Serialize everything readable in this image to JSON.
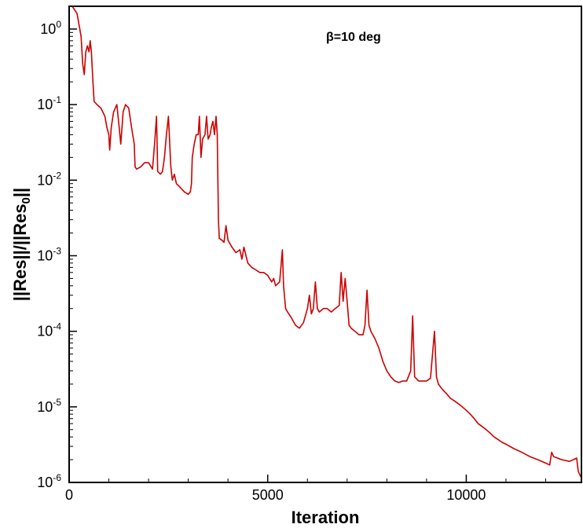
{
  "chart_data": {
    "type": "line",
    "title": "",
    "annotation": "β=10 deg",
    "xlabel": "Iteration",
    "ylabel": "||Res||/||Res0||",
    "ylabel_main": "||Res||/||Res",
    "ylabel_sub": "0",
    "ylabel_end": "||",
    "xlim": [
      0,
      12900
    ],
    "ylim": [
      1e-06,
      2
    ],
    "yscale": "log",
    "grid": false,
    "x_ticks": [
      {
        "value": 0,
        "label": "0"
      },
      {
        "value": 5000,
        "label": "5000"
      },
      {
        "value": 10000,
        "label": "10000"
      }
    ],
    "y_ticks": [
      {
        "value": 1,
        "base": "10",
        "exp": "0"
      },
      {
        "value": 0.1,
        "base": "10",
        "exp": "-1"
      },
      {
        "value": 0.01,
        "base": "10",
        "exp": "-2"
      },
      {
        "value": 0.001,
        "base": "10",
        "exp": "-3"
      },
      {
        "value": 0.0001,
        "base": "10",
        "exp": "-4"
      },
      {
        "value": 1e-05,
        "base": "10",
        "exp": "-5"
      },
      {
        "value": 1e-06,
        "base": "10",
        "exp": "-6"
      }
    ],
    "series": [
      {
        "color": "#cc0000",
        "points": [
          [
            0,
            2.0
          ],
          [
            80,
            2.0
          ],
          [
            200,
            1.6
          ],
          [
            300,
            0.8
          ],
          [
            340,
            0.35
          ],
          [
            380,
            0.25
          ],
          [
            420,
            0.5
          ],
          [
            460,
            0.6
          ],
          [
            500,
            0.5
          ],
          [
            530,
            0.7
          ],
          [
            560,
            0.5
          ],
          [
            600,
            0.2
          ],
          [
            630,
            0.11
          ],
          [
            700,
            0.1
          ],
          [
            800,
            0.09
          ],
          [
            900,
            0.07
          ],
          [
            950,
            0.05
          ],
          [
            1000,
            0.04
          ],
          [
            1020,
            0.025
          ],
          [
            1060,
            0.05
          ],
          [
            1120,
            0.08
          ],
          [
            1200,
            0.1
          ],
          [
            1260,
            0.05
          ],
          [
            1300,
            0.03
          ],
          [
            1360,
            0.08
          ],
          [
            1420,
            0.1
          ],
          [
            1500,
            0.09
          ],
          [
            1550,
            0.06
          ],
          [
            1600,
            0.04
          ],
          [
            1640,
            0.03
          ],
          [
            1660,
            0.015
          ],
          [
            1700,
            0.014
          ],
          [
            1800,
            0.015
          ],
          [
            1900,
            0.017
          ],
          [
            2000,
            0.017
          ],
          [
            2100,
            0.014
          ],
          [
            2150,
            0.03
          ],
          [
            2200,
            0.07
          ],
          [
            2230,
            0.013
          ],
          [
            2300,
            0.012
          ],
          [
            2350,
            0.013
          ],
          [
            2400,
            0.02
          ],
          [
            2450,
            0.04
          ],
          [
            2500,
            0.07
          ],
          [
            2560,
            0.015
          ],
          [
            2600,
            0.01
          ],
          [
            2650,
            0.012
          ],
          [
            2700,
            0.009
          ],
          [
            2800,
            0.008
          ],
          [
            2900,
            0.007
          ],
          [
            3000,
            0.0065
          ],
          [
            3050,
            0.007
          ],
          [
            3080,
            0.009
          ],
          [
            3100,
            0.02
          ],
          [
            3150,
            0.03
          ],
          [
            3200,
            0.04
          ],
          [
            3250,
            0.04
          ],
          [
            3280,
            0.07
          ],
          [
            3320,
            0.02
          ],
          [
            3360,
            0.035
          ],
          [
            3420,
            0.04
          ],
          [
            3460,
            0.07
          ],
          [
            3500,
            0.035
          ],
          [
            3550,
            0.04
          ],
          [
            3580,
            0.05
          ],
          [
            3620,
            0.06
          ],
          [
            3660,
            0.04
          ],
          [
            3700,
            0.07
          ],
          [
            3730,
            0.04
          ],
          [
            3760,
            0.003
          ],
          [
            3780,
            0.0017
          ],
          [
            3850,
            0.0016
          ],
          [
            3900,
            0.0015
          ],
          [
            3950,
            0.0025
          ],
          [
            4000,
            0.0016
          ],
          [
            4100,
            0.0013
          ],
          [
            4200,
            0.0011
          ],
          [
            4300,
            0.0012
          ],
          [
            4350,
            0.0009
          ],
          [
            4400,
            0.0013
          ],
          [
            4500,
            0.0008
          ],
          [
            4600,
            0.0007
          ],
          [
            4700,
            0.00065
          ],
          [
            4800,
            0.0006
          ],
          [
            4900,
            0.0006
          ],
          [
            5000,
            0.00055
          ],
          [
            5100,
            0.00045
          ],
          [
            5150,
            0.0005
          ],
          [
            5200,
            0.0004
          ],
          [
            5300,
            0.00045
          ],
          [
            5370,
            0.0012
          ],
          [
            5400,
            0.0004
          ],
          [
            5450,
            0.0002
          ],
          [
            5500,
            0.00018
          ],
          [
            5600,
            0.00015
          ],
          [
            5700,
            0.00012
          ],
          [
            5800,
            0.00011
          ],
          [
            5900,
            0.00013
          ],
          [
            6000,
            0.0002
          ],
          [
            6050,
            0.0003
          ],
          [
            6100,
            0.00017
          ],
          [
            6150,
            0.0002
          ],
          [
            6200,
            0.00045
          ],
          [
            6250,
            0.0002
          ],
          [
            6300,
            0.00018
          ],
          [
            6400,
            0.0002
          ],
          [
            6500,
            0.0002
          ],
          [
            6600,
            0.00018
          ],
          [
            6700,
            0.0002
          ],
          [
            6800,
            0.00022
          ],
          [
            6850,
            0.0006
          ],
          [
            6900,
            0.00025
          ],
          [
            6950,
            0.0005
          ],
          [
            7000,
            0.00025
          ],
          [
            7050,
            0.00012
          ],
          [
            7100,
            0.00011
          ],
          [
            7200,
            0.0001
          ],
          [
            7300,
            9e-05
          ],
          [
            7400,
            9e-05
          ],
          [
            7450,
            0.00012
          ],
          [
            7500,
            0.00035
          ],
          [
            7550,
            0.00012
          ],
          [
            7600,
            0.0001
          ],
          [
            7700,
            8e-05
          ],
          [
            7800,
            6e-05
          ],
          [
            7900,
            4e-05
          ],
          [
            8000,
            3e-05
          ],
          [
            8100,
            2.5e-05
          ],
          [
            8200,
            2.2e-05
          ],
          [
            8300,
            2.1e-05
          ],
          [
            8400,
            2.2e-05
          ],
          [
            8500,
            2.2e-05
          ],
          [
            8600,
            3e-05
          ],
          [
            8650,
            0.00016
          ],
          [
            8700,
            2.5e-05
          ],
          [
            8800,
            2.2e-05
          ],
          [
            8900,
            2.2e-05
          ],
          [
            9000,
            2.2e-05
          ],
          [
            9100,
            2.4e-05
          ],
          [
            9150,
            5e-05
          ],
          [
            9200,
            0.0001
          ],
          [
            9250,
            2.5e-05
          ],
          [
            9300,
            2e-05
          ],
          [
            9400,
            1.7e-05
          ],
          [
            9500,
            1.5e-05
          ],
          [
            9600,
            1.3e-05
          ],
          [
            9700,
            1.2e-05
          ],
          [
            9800,
            1.1e-05
          ],
          [
            9900,
            1e-05
          ],
          [
            10000,
            9e-06
          ],
          [
            10100,
            8e-06
          ],
          [
            10200,
            7e-06
          ],
          [
            10300,
            6e-06
          ],
          [
            10400,
            5.5e-06
          ],
          [
            10500,
            5e-06
          ],
          [
            10600,
            4.5e-06
          ],
          [
            10700,
            4e-06
          ],
          [
            10800,
            3.7e-06
          ],
          [
            10900,
            3.4e-06
          ],
          [
            11000,
            3.2e-06
          ],
          [
            11200,
            2.8e-06
          ],
          [
            11400,
            2.5e-06
          ],
          [
            11600,
            2.2e-06
          ],
          [
            11800,
            2e-06
          ],
          [
            12000,
            1.8e-06
          ],
          [
            12100,
            1.7e-06
          ],
          [
            12150,
            2.5e-06
          ],
          [
            12200,
            2.2e-06
          ],
          [
            12400,
            2e-06
          ],
          [
            12600,
            1.9e-06
          ],
          [
            12700,
            2e-06
          ],
          [
            12780,
            2.1e-06
          ],
          [
            12820,
            1.4e-06
          ],
          [
            12880,
            1.2e-06
          ],
          [
            12900,
            1.2e-06
          ]
        ]
      }
    ]
  }
}
